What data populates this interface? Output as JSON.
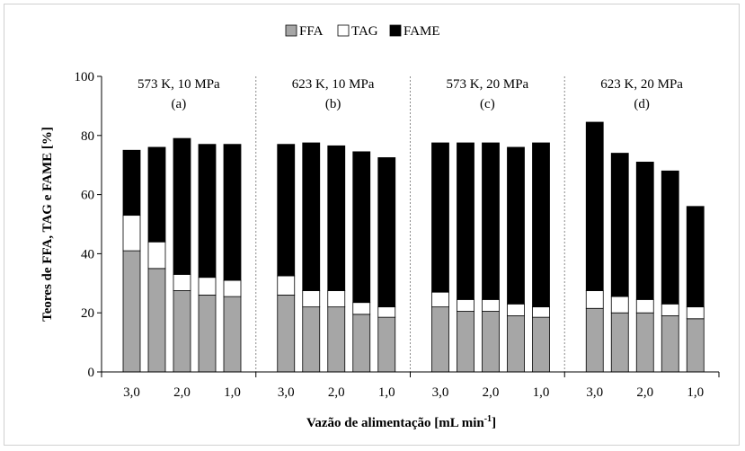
{
  "chart_data": {
    "type": "bar",
    "stacked": true,
    "title": "",
    "xlabel": "Vazão de alimentação [mL min",
    "xlabel_sup": "-1",
    "xlabel_close": "]",
    "ylabel": "Teores de FFA, TAG e FAME [%]",
    "ylim": [
      0,
      100
    ],
    "yticks": [
      "0",
      "20",
      "40",
      "60",
      "80",
      "100"
    ],
    "legend_position": "top-center",
    "panels": [
      {
        "condition": "573 K, 10 MPa",
        "tag": "(a)"
      },
      {
        "condition": "623 K, 10 MPa",
        "tag": "(b)"
      },
      {
        "condition": "573 K, 20 MPa",
        "tag": "(c)"
      },
      {
        "condition": "623 K, 20 MPa",
        "tag": "(d)"
      }
    ],
    "bars_per_panel": 5,
    "x_tick_labels": [
      "3,0",
      "2,0",
      "1,0"
    ],
    "x_tick_label_bar_index": [
      0,
      2,
      4
    ],
    "series": [
      {
        "name": "FFA",
        "color": "#a6a6a6",
        "values": [
          41,
          35,
          27.5,
          26,
          25.5,
          26,
          22,
          22,
          19.5,
          18.5,
          22,
          20.5,
          20.5,
          19,
          18.5,
          21.5,
          20,
          20,
          19,
          18
        ]
      },
      {
        "name": "TAG",
        "color": "#ffffff",
        "values": [
          12,
          9,
          5.5,
          6,
          5.5,
          6.5,
          5.5,
          5.5,
          4,
          3.5,
          5,
          4,
          4,
          4,
          3.5,
          6,
          5.5,
          4.5,
          4,
          4
        ]
      },
      {
        "name": "FAME",
        "color": "#000000",
        "values": [
          22,
          32,
          46,
          45,
          46,
          44.5,
          50,
          49,
          51,
          50.5,
          50.5,
          53,
          53,
          53,
          55.5,
          57,
          48.5,
          46.5,
          45,
          34
        ]
      }
    ]
  }
}
